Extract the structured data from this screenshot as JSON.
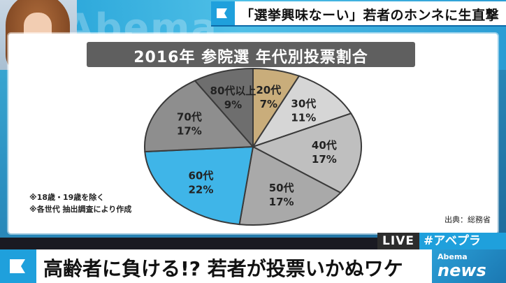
{
  "headline": {
    "text": "「選挙興味なーい」若者のホンネに生直撃"
  },
  "board": {
    "title": "2016年 参院選 年代別投票割合",
    "notes": [
      "※18歳・19歳を除く",
      "※各世代 抽出調査により作成"
    ],
    "source": "出典：総務省"
  },
  "chart_data": {
    "type": "pie",
    "title": "2016年 参院選 年代別投票割合",
    "slices": [
      {
        "label": "20代",
        "value": 7,
        "value_label": "7%",
        "color": "#c9ad7b"
      },
      {
        "label": "30代",
        "value": 11,
        "value_label": "11%",
        "color": "#d6d6d6"
      },
      {
        "label": "40代",
        "value": 17,
        "value_label": "17%",
        "color": "#bfbfbf"
      },
      {
        "label": "50代",
        "value": 17,
        "value_label": "17%",
        "color": "#a9a9a9"
      },
      {
        "label": "60代",
        "value": 22,
        "value_label": "22%",
        "color": "#3fb5e8"
      },
      {
        "label": "70代",
        "value": 17,
        "value_label": "17%",
        "color": "#8e8e8e"
      },
      {
        "label": "80代以上",
        "value": 9,
        "value_label": "9%",
        "color": "#6e6e6e"
      }
    ]
  },
  "badges": {
    "live": "LIVE",
    "hashtag": "#アベプラ"
  },
  "ticker": {
    "text": "高齢者に負ける!? 若者が投票いかぬワケ"
  },
  "logo": {
    "small": "Abema",
    "large": "news"
  },
  "studio": {
    "deco": "Abema"
  },
  "colors": {
    "accent": "#1fa0dc",
    "title_bg": "#5f5f5f"
  },
  "icons": {
    "flag": "flag-icon"
  }
}
